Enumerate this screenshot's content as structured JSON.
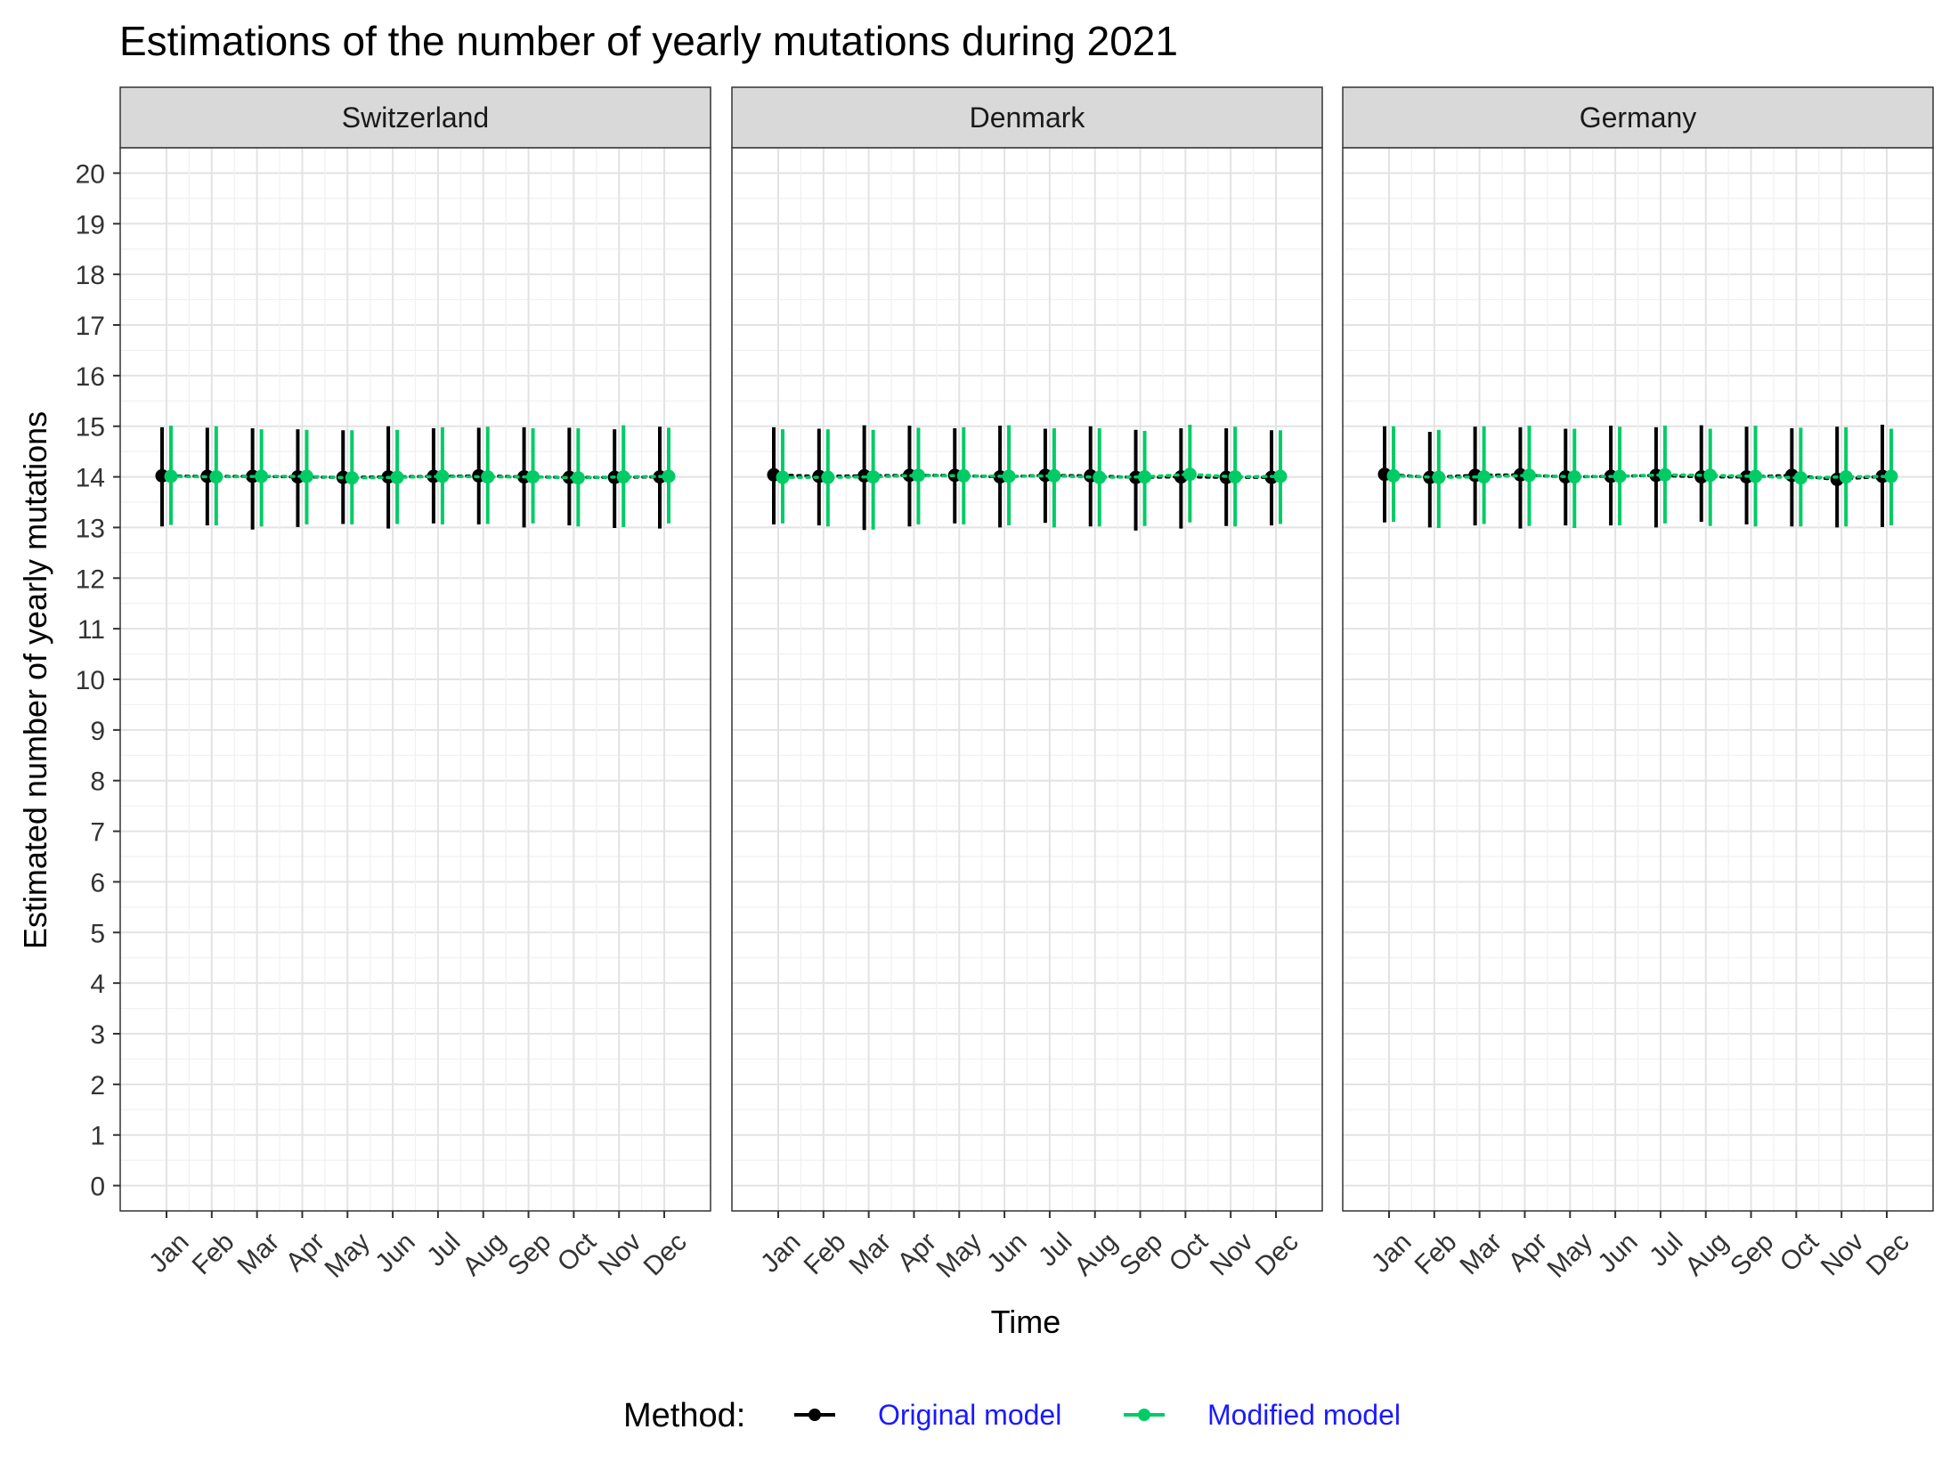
{
  "chart_data": {
    "type": "line",
    "title": "Estimations of the number of yearly mutations during 2021",
    "xlabel": "Time",
    "ylabel": "Estimated number of yearly mutations",
    "ylim": [
      -0.5,
      20.5
    ],
    "yticks": [
      0,
      1,
      2,
      3,
      4,
      5,
      6,
      7,
      8,
      9,
      10,
      11,
      12,
      13,
      14,
      15,
      16,
      17,
      18,
      19,
      20
    ],
    "categories": [
      "Jan",
      "Feb",
      "Mar",
      "Apr",
      "May",
      "Jun",
      "Jul",
      "Aug",
      "Sep",
      "Oct",
      "Nov",
      "Dec"
    ],
    "grid": true,
    "legend": {
      "title": "Method:",
      "position": "bottom",
      "entries": [
        {
          "name": "Original model",
          "color": "#000000"
        },
        {
          "name": "Modified model",
          "color": "#00CC66"
        }
      ]
    },
    "facets": [
      {
        "label": "Switzerland",
        "series": [
          {
            "name": "Original model",
            "values": [
              14.02,
              14.01,
              14.01,
              14.0,
              13.99,
              14.0,
              14.01,
              14.02,
              14.0,
              13.99,
              13.99,
              14.0
            ],
            "lower": [
              13.02,
              13.04,
              12.96,
              13.01,
              13.07,
              12.98,
              13.08,
              13.06,
              13.0,
              13.04,
              12.99,
              12.98
            ],
            "upper": [
              14.98,
              14.97,
              14.96,
              14.94,
              14.92,
              15.0,
              14.96,
              14.97,
              14.98,
              14.97,
              14.94,
              14.99
            ]
          },
          {
            "name": "Modified model",
            "values": [
              14.01,
              14.0,
              14.01,
              14.01,
              13.98,
              13.99,
              14.01,
              14.0,
              14.0,
              13.98,
              14.0,
              14.01
            ],
            "lower": [
              13.05,
              13.04,
              13.02,
              13.06,
              13.06,
              13.07,
              13.06,
              13.07,
              13.08,
              13.02,
              13.01,
              13.08
            ],
            "upper": [
              15.01,
              15.0,
              14.94,
              14.93,
              14.92,
              14.93,
              14.98,
              14.99,
              14.96,
              14.96,
              15.02,
              14.97
            ]
          }
        ]
      },
      {
        "label": "Denmark",
        "series": [
          {
            "name": "Original model",
            "values": [
              14.04,
              14.01,
              14.02,
              14.03,
              14.03,
              14.0,
              14.03,
              14.02,
              13.99,
              14.0,
              13.99,
              13.99
            ],
            "lower": [
              13.06,
              13.04,
              12.95,
              13.02,
              13.08,
              13.0,
              13.09,
              13.02,
              12.94,
              12.98,
              13.03,
              13.04
            ],
            "upper": [
              14.98,
              14.95,
              15.02,
              15.01,
              14.96,
              15.01,
              14.95,
              15.0,
              14.93,
              14.96,
              14.96,
              14.92
            ]
          },
          {
            "name": "Modified model",
            "values": [
              13.99,
              13.99,
              14.0,
              14.03,
              14.02,
              14.01,
              14.02,
              13.99,
              14.0,
              14.05,
              14.0,
              14.01
            ],
            "lower": [
              13.08,
              13.02,
              12.96,
              13.06,
              13.06,
              13.04,
              13.0,
              13.02,
              13.03,
              13.1,
              13.02,
              13.07
            ],
            "upper": [
              14.94,
              14.94,
              14.93,
              14.97,
              14.98,
              15.02,
              14.96,
              14.96,
              14.91,
              15.03,
              14.99,
              14.92
            ]
          }
        ]
      },
      {
        "label": "Germany",
        "series": [
          {
            "name": "Original model",
            "values": [
              14.05,
              13.99,
              14.03,
              14.04,
              14.0,
              14.01,
              14.03,
              14.0,
              14.0,
              14.03,
              13.95,
              14.01
            ],
            "lower": [
              13.1,
              13.0,
              13.04,
              12.98,
              13.04,
              13.04,
              13.0,
              13.11,
              13.06,
              13.02,
              13.0,
              13.01
            ],
            "upper": [
              15.0,
              14.89,
              14.99,
              14.98,
              14.95,
              15.01,
              14.98,
              15.02,
              14.99,
              14.96,
              14.99,
              15.03
            ]
          },
          {
            "name": "Modified model",
            "values": [
              14.02,
              13.99,
              14.0,
              14.03,
              14.0,
              14.01,
              14.04,
              14.03,
              14.01,
              13.98,
              14.0,
              14.01
            ],
            "lower": [
              13.11,
              12.99,
              13.07,
              13.03,
              12.99,
              13.04,
              13.08,
              13.03,
              13.02,
              13.02,
              13.02,
              13.04
            ],
            "upper": [
              15.0,
              14.93,
              15.0,
              15.01,
              14.95,
              14.99,
              15.01,
              14.95,
              15.01,
              14.97,
              14.98,
              14.95
            ]
          }
        ]
      }
    ]
  }
}
